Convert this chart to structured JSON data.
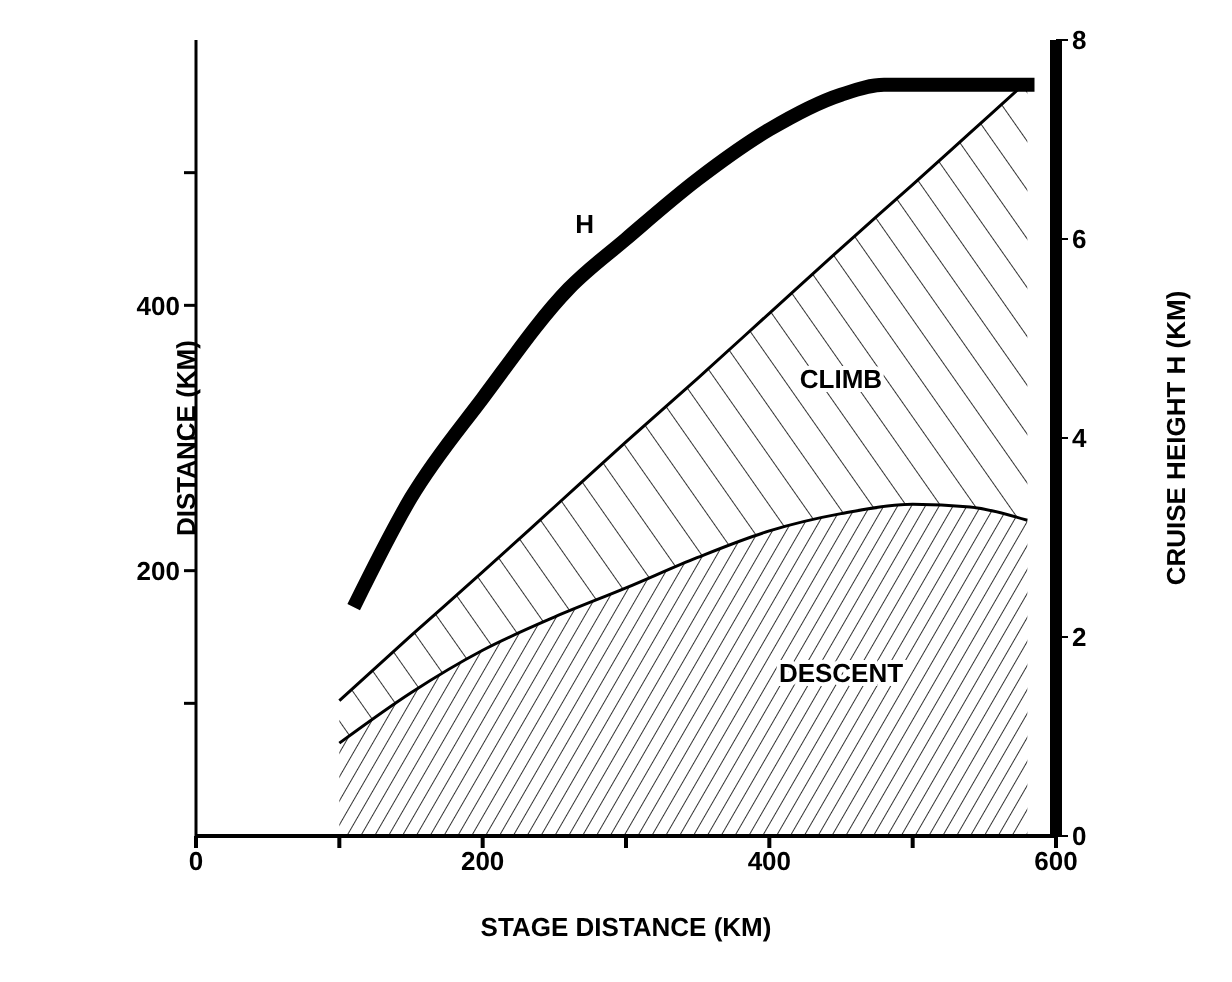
{
  "chart_data": {
    "type": "area",
    "stacked": true,
    "xlabel": "STAGE DISTANCE (KM)",
    "ylabel": "DISTANCE (KM)",
    "y2label": "CRUISE HEIGHT H (KM)",
    "x": [
      100,
      150,
      200,
      250,
      300,
      350,
      400,
      450,
      500,
      540,
      580
    ],
    "xlim": [
      0,
      600
    ],
    "xticks": [
      0,
      {
        "value": 100,
        "label": null
      },
      200,
      {
        "value": 300,
        "label": null
      },
      400,
      {
        "value": 500,
        "label": null
      },
      600
    ],
    "ylim": [
      0,
      600
    ],
    "yticks": [
      {
        "value": 100,
        "label": null
      },
      200,
      {
        "value": 300,
        "label": null
      },
      400,
      {
        "value": 500,
        "label": null
      }
    ],
    "y2lim": [
      0,
      8
    ],
    "y2ticks": [
      0,
      2,
      4,
      6,
      8
    ],
    "series": [
      {
        "name": "DESCENT",
        "color": "#000000",
        "values": [
          70,
          108,
          140,
          165,
          187,
          210,
          230,
          243,
          250,
          248,
          238
        ]
      },
      {
        "name": "CLIMB",
        "color": "#000000",
        "values": [
          32,
          43,
          59,
          83,
          110,
          135,
          164,
          200,
          241,
          282,
          331
        ]
      },
      {
        "name": "H",
        "type": "line",
        "axis": "y2",
        "color": "#000000",
        "x": [
          110,
          150,
          200,
          260,
          300,
          350,
          400,
          450,
          480,
          585
        ],
        "values": [
          2.3,
          3.4,
          4.4,
          5.5,
          6.0,
          6.6,
          7.1,
          7.45,
          7.55,
          7.55
        ]
      }
    ]
  }
}
